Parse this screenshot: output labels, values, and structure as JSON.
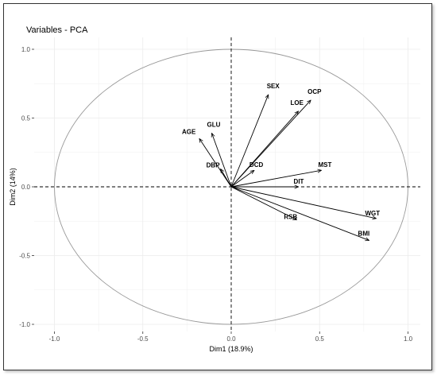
{
  "chart_data": {
    "type": "scatter",
    "subtype": "pca-correlation-circle",
    "title": "Variables - PCA",
    "xlabel": "Dim1 (18.9%)",
    "ylabel": "Dim2 (14%)",
    "xlim": [
      -1.05,
      1.05
    ],
    "ylim": [
      -1.05,
      1.05
    ],
    "x_ticks": [
      "-1.0",
      "-0.5",
      "0.0",
      "0.5",
      "1.0"
    ],
    "y_ticks": [
      "-1.0",
      "-0.5",
      "0.0",
      "0.5",
      "1.0"
    ],
    "grid": true,
    "unit_circle": true,
    "colors": {
      "arrows": "#000000",
      "circle": "#999999",
      "grid": "#ebebeb",
      "reference_lines": "#000000"
    },
    "variables": [
      {
        "name": "SEX",
        "x": 0.21,
        "y": 0.67
      },
      {
        "name": "OCP",
        "x": 0.45,
        "y": 0.63
      },
      {
        "name": "LOE",
        "x": 0.38,
        "y": 0.55
      },
      {
        "name": "GLU",
        "x": -0.11,
        "y": 0.39
      },
      {
        "name": "AGE",
        "x": -0.18,
        "y": 0.35
      },
      {
        "name": "DBP",
        "x": -0.06,
        "y": 0.13
      },
      {
        "name": "DCD",
        "x": 0.13,
        "y": 0.12
      },
      {
        "name": "MST",
        "x": 0.51,
        "y": 0.12
      },
      {
        "name": "DIT",
        "x": 0.38,
        "y": 0.0
      },
      {
        "name": "RSB",
        "x": 0.37,
        "y": -0.24
      },
      {
        "name": "WGT",
        "x": 0.82,
        "y": -0.23
      },
      {
        "name": "BMI",
        "x": 0.78,
        "y": -0.39
      }
    ]
  }
}
